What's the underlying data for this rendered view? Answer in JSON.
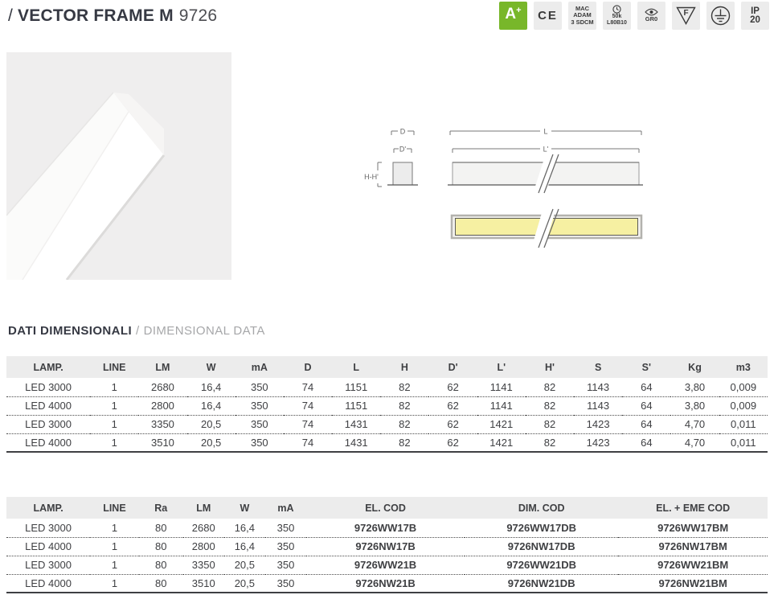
{
  "header": {
    "slash": "/",
    "title": "VECTOR FRAME M",
    "product_code": "9726",
    "badges": {
      "energy_class_letter": "A",
      "energy_class_plus": "+",
      "ce_mark": "CE",
      "macadam_line1": "MAC",
      "macadam_line2": "ADAM",
      "macadam_line3": "3 SDCM",
      "lifetime_line1": "50k",
      "lifetime_line2": "L80B10",
      "glare_label": "GR0",
      "f_mark_letter": "F",
      "ip_line1": "IP",
      "ip_line2": "20"
    }
  },
  "drawings": {
    "cross_section": {
      "width_label": "D",
      "inner_width_label": "D'",
      "height_label": "H-H'"
    },
    "length_view": {
      "length_label": "L",
      "inner_length_label": "L'"
    }
  },
  "section_header": {
    "title_it": "DATI DIMENSIONALI",
    "separator": "/",
    "title_en": "DIMENSIONAL DATA"
  },
  "dimensional_table": {
    "headers": [
      "LAMP.",
      "LINE",
      "LM",
      "W",
      "mA",
      "D",
      "L",
      "H",
      "D'",
      "L'",
      "H'",
      "S",
      "S'",
      "Kg",
      "m3"
    ],
    "rows": [
      [
        "LED 3000",
        "1",
        "2680",
        "16,4",
        "350",
        "74",
        "1151",
        "82",
        "62",
        "1141",
        "82",
        "1143",
        "64",
        "3,80",
        "0,009"
      ],
      [
        "LED 4000",
        "1",
        "2800",
        "16,4",
        "350",
        "74",
        "1151",
        "82",
        "62",
        "1141",
        "82",
        "1143",
        "64",
        "3,80",
        "0,009"
      ],
      [
        "LED 3000",
        "1",
        "3350",
        "20,5",
        "350",
        "74",
        "1431",
        "82",
        "62",
        "1421",
        "82",
        "1423",
        "64",
        "4,70",
        "0,011"
      ],
      [
        "LED 4000",
        "1",
        "3510",
        "20,5",
        "350",
        "74",
        "1431",
        "82",
        "62",
        "1421",
        "82",
        "1423",
        "64",
        "4,70",
        "0,011"
      ]
    ]
  },
  "codes_table": {
    "headers": [
      "LAMP.",
      "LINE",
      "Ra",
      "LM",
      "W",
      "mA",
      "EL. COD",
      "DIM. COD",
      "EL. + EME COD"
    ],
    "rows": [
      [
        "LED 3000",
        "1",
        "80",
        "2680",
        "16,4",
        "350",
        "9726WW17B",
        "9726WW17DB",
        "9726WW17BM"
      ],
      [
        "LED 4000",
        "1",
        "80",
        "2800",
        "16,4",
        "350",
        "9726NW17B",
        "9726NW17DB",
        "9726NW17BM"
      ],
      [
        "LED 3000",
        "1",
        "80",
        "3350",
        "20,5",
        "350",
        "9726WW21B",
        "9726WW21DB",
        "9726WW21BM"
      ],
      [
        "LED 4000",
        "1",
        "80",
        "3510",
        "20,5",
        "350",
        "9726NW21B",
        "9726NW21DB",
        "9726NW21BM"
      ]
    ]
  },
  "colors": {
    "energy_badge_green": "#78b72a",
    "badge_background": "#ececec",
    "table_header_background": "#ececec",
    "text_dark": "#363943",
    "text_gray": "#a6a7a9",
    "diagram_yellow": "#f6f0a2"
  }
}
